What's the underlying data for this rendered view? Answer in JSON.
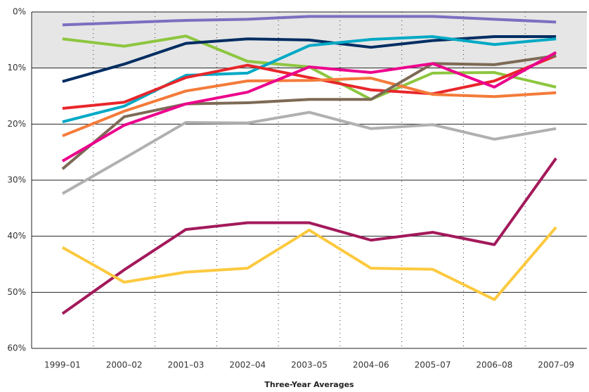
{
  "chart_data": {
    "type": "line",
    "x_label": "Three-Year Averages",
    "categories": [
      "1999–01",
      "2000–02",
      "2001–03",
      "2002–04",
      "2003–05",
      "2004–06",
      "2005–07",
      "2006–08",
      "2007–09"
    ],
    "ylim": [
      0,
      60
    ],
    "y_inverted": true,
    "yticks": [
      {
        "value": 0,
        "label": "0%"
      },
      {
        "value": 10,
        "label": "10%"
      },
      {
        "value": 20,
        "label": "20%"
      },
      {
        "value": 30,
        "label": "30%"
      },
      {
        "value": 40,
        "label": "40%"
      },
      {
        "value": 50,
        "label": "50%"
      },
      {
        "value": 60,
        "label": "60%"
      }
    ],
    "grid": true,
    "highlight_range": [
      0,
      10
    ],
    "highlight_color": "#e6e6e6",
    "series": [
      {
        "color": "#7b6fc0",
        "values": [
          2.3,
          1.9,
          1.5,
          1.3,
          0.8,
          0.8,
          0.8,
          1.3,
          1.8
        ]
      },
      {
        "color": "#8dc63f",
        "values": [
          4.8,
          6.1,
          4.3,
          8.8,
          9.8,
          15.6,
          10.9,
          10.8,
          13.4
        ]
      },
      {
        "color": "#002d62",
        "values": [
          12.4,
          9.3,
          5.6,
          4.8,
          5.0,
          6.3,
          5.1,
          4.4,
          4.4
        ]
      },
      {
        "color": "#00a9c5",
        "values": [
          19.6,
          16.8,
          11.3,
          10.9,
          6.0,
          4.9,
          4.4,
          5.8,
          4.8
        ]
      },
      {
        "color": "#e8262b",
        "values": [
          17.2,
          16.1,
          11.7,
          9.5,
          11.7,
          13.9,
          14.6,
          12.3,
          7.8
        ]
      },
      {
        "color": "#f47b3a",
        "values": [
          22.1,
          17.7,
          14.1,
          12.3,
          12.2,
          11.8,
          14.7,
          15.1,
          14.4
        ]
      },
      {
        "color": "#7d6a55",
        "values": [
          28.0,
          18.7,
          16.4,
          16.2,
          15.6,
          15.6,
          9.2,
          9.4,
          7.8
        ]
      },
      {
        "color": "#ec008c",
        "values": [
          26.6,
          20.2,
          16.4,
          14.3,
          9.8,
          10.8,
          9.2,
          13.4,
          7.2
        ]
      },
      {
        "color": "#b0b0b0",
        "values": [
          32.4,
          26.1,
          19.7,
          19.8,
          17.9,
          20.8,
          20.1,
          22.7,
          20.8
        ]
      },
      {
        "color": "#a3195b",
        "values": [
          53.8,
          46.0,
          38.8,
          37.6,
          37.6,
          40.7,
          39.3,
          41.5,
          26.1
        ]
      },
      {
        "color": "#fcc93f",
        "values": [
          42.0,
          48.2,
          46.4,
          45.7,
          38.9,
          45.7,
          45.9,
          51.3,
          38.4
        ]
      }
    ]
  }
}
